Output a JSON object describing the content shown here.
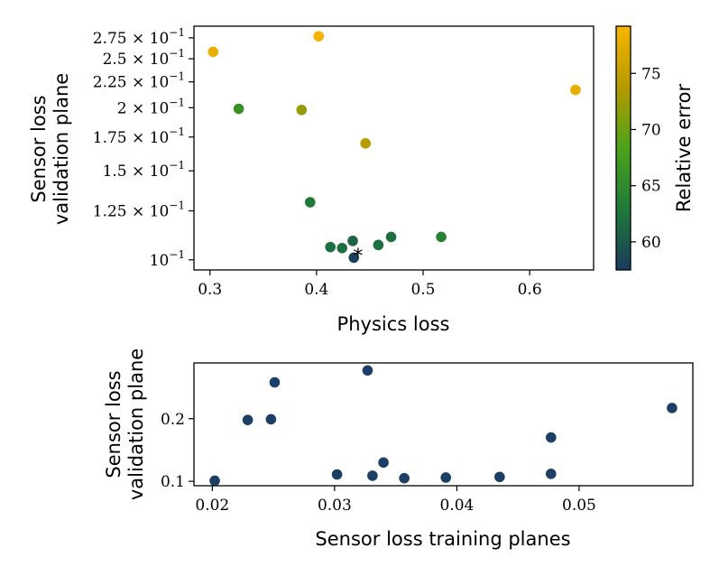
{
  "chart_data": [
    {
      "type": "scatter",
      "xlabel": "Physics loss",
      "ylabel": [
        "Sensor loss",
        "validation plane"
      ],
      "xlim": [
        0.285,
        0.66
      ],
      "ylim": [
        0.0955,
        0.29
      ],
      "yscale": "log",
      "xticks": [
        {
          "value": 0.3,
          "label": "0.3"
        },
        {
          "value": 0.4,
          "label": "0.4"
        },
        {
          "value": 0.5,
          "label": "0.5"
        },
        {
          "value": 0.6,
          "label": "0.6"
        }
      ],
      "yticks": [
        {
          "value": 0.1,
          "label": "10",
          "exp": "−1",
          "pre": ""
        },
        {
          "value": 0.125,
          "label": "1.25 × 10",
          "exp": "−1"
        },
        {
          "value": 0.15,
          "label": "1.5 × 10",
          "exp": "−1"
        },
        {
          "value": 0.175,
          "label": "1.75 × 10",
          "exp": "−1"
        },
        {
          "value": 0.2,
          "label": "2 × 10",
          "exp": "−1"
        },
        {
          "value": 0.225,
          "label": "2.25 × 10",
          "exp": "−1"
        },
        {
          "value": 0.25,
          "label": "2.5 × 10",
          "exp": "−1"
        },
        {
          "value": 0.275,
          "label": "2.75 × 10",
          "exp": "−1"
        }
      ],
      "points": [
        {
          "x": 0.303,
          "y": 0.258,
          "c": 78
        },
        {
          "x": 0.402,
          "y": 0.277,
          "c": 79
        },
        {
          "x": 0.643,
          "y": 0.217,
          "c": 78
        },
        {
          "x": 0.327,
          "y": 0.199,
          "c": 66
        },
        {
          "x": 0.386,
          "y": 0.198,
          "c": 72
        },
        {
          "x": 0.446,
          "y": 0.17,
          "c": 74
        },
        {
          "x": 0.394,
          "y": 0.13,
          "c": 63
        },
        {
          "x": 0.413,
          "y": 0.106,
          "c": 62
        },
        {
          "x": 0.424,
          "y": 0.1055,
          "c": 62
        },
        {
          "x": 0.434,
          "y": 0.109,
          "c": 61
        },
        {
          "x": 0.458,
          "y": 0.107,
          "c": 62
        },
        {
          "x": 0.47,
          "y": 0.111,
          "c": 62
        },
        {
          "x": 0.517,
          "y": 0.111,
          "c": 64
        },
        {
          "x": 0.435,
          "y": 0.101,
          "c": 58
        }
      ],
      "marker": {
        "x": 0.439,
        "y": 0.1033,
        "symbol": "*",
        "color": "#ff2b2b"
      },
      "colorbar": {
        "label": "Relative error",
        "range": [
          57.5,
          79.2
        ],
        "ticks": [
          60,
          65,
          70,
          75
        ],
        "tick_labels": [
          "60",
          "65",
          "70",
          "75"
        ],
        "colors": [
          "#1b3a5c",
          "#1f7a3a",
          "#4ca31a",
          "#b59a00",
          "#f7b500"
        ]
      }
    },
    {
      "type": "scatter",
      "xlabel": "Sensor loss training planes",
      "ylabel": [
        "Sensor loss",
        "validation plane"
      ],
      "xlim": [
        0.0185,
        0.0593
      ],
      "ylim": [
        0.093,
        0.289
      ],
      "xticks": [
        {
          "value": 0.02,
          "label": "0.02"
        },
        {
          "value": 0.03,
          "label": "0.03"
        },
        {
          "value": 0.04,
          "label": "0.04"
        },
        {
          "value": 0.05,
          "label": "0.05"
        }
      ],
      "yticks": [
        {
          "value": 0.1,
          "label": "0.1"
        },
        {
          "value": 0.2,
          "label": "0.2"
        }
      ],
      "color": "#1c3f66",
      "points": [
        {
          "x": 0.0202,
          "y": 0.101
        },
        {
          "x": 0.0229,
          "y": 0.198
        },
        {
          "x": 0.0248,
          "y": 0.199
        },
        {
          "x": 0.0251,
          "y": 0.258
        },
        {
          "x": 0.0302,
          "y": 0.111
        },
        {
          "x": 0.0327,
          "y": 0.277
        },
        {
          "x": 0.0331,
          "y": 0.109
        },
        {
          "x": 0.034,
          "y": 0.13
        },
        {
          "x": 0.0357,
          "y": 0.105
        },
        {
          "x": 0.0391,
          "y": 0.106
        },
        {
          "x": 0.0435,
          "y": 0.107
        },
        {
          "x": 0.0477,
          "y": 0.17
        },
        {
          "x": 0.0477,
          "y": 0.112
        },
        {
          "x": 0.0576,
          "y": 0.217
        }
      ]
    }
  ]
}
